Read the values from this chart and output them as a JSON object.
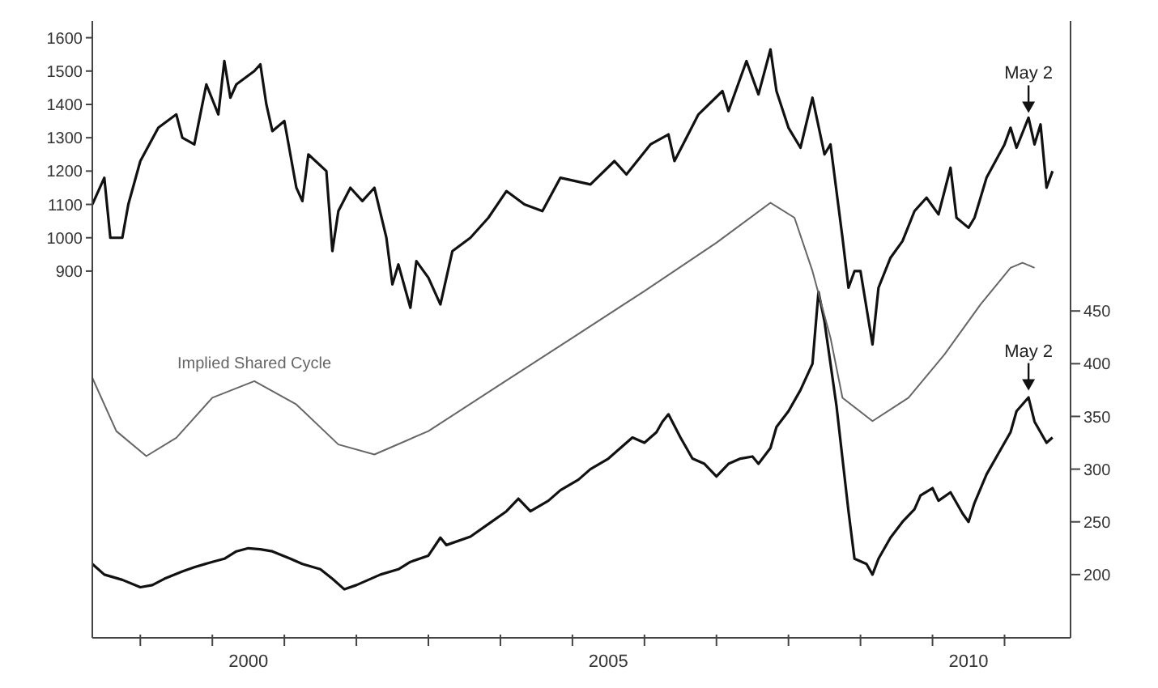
{
  "chart_data": {
    "type": "line",
    "marker": "none",
    "line_style": "solid",
    "xlim": [
      "1998-05",
      "2011-12"
    ],
    "xticks": [
      {
        "value": "1999-01",
        "label": null
      },
      {
        "value": "2000-01",
        "label": null
      },
      {
        "value": "2000-07",
        "label": "2000"
      },
      {
        "value": "2001-01",
        "label": null
      },
      {
        "value": "2002-01",
        "label": null
      },
      {
        "value": "2003-01",
        "label": null
      },
      {
        "value": "2004-01",
        "label": null
      },
      {
        "value": "2005-01",
        "label": null
      },
      {
        "value": "2005-07",
        "label": "2005"
      },
      {
        "value": "2006-01",
        "label": null
      },
      {
        "value": "2007-01",
        "label": null
      },
      {
        "value": "2008-01",
        "label": null
      },
      {
        "value": "2009-01",
        "label": null
      },
      {
        "value": "2010-01",
        "label": null
      },
      {
        "value": "2010-07",
        "label": "2010"
      },
      {
        "value": "2011-01",
        "label": null
      }
    ],
    "ylim": [
      -200,
      1650
    ],
    "yticks": [
      900,
      1000,
      1100,
      1200,
      1300,
      1400,
      1500,
      1600
    ],
    "y2lim": [
      140,
      725
    ],
    "y2ticks": [
      200,
      250,
      300,
      350,
      400,
      450
    ],
    "annotations": [
      {
        "text": "May 2",
        "x": "2011-05",
        "y": 1360
      },
      {
        "text": "May 2",
        "x": "2011-05",
        "y": 527
      }
    ],
    "series": [
      {
        "color": "#111111",
        "x": [
          "1998-05",
          "1998-07",
          "1998-08",
          "1998-10",
          "1998-11",
          "1999-01",
          "1999-04",
          "1999-07",
          "1999-08",
          "1999-10",
          "1999-12",
          "2000-02",
          "2000-03",
          "2000-04",
          "2000-05",
          "2000-08",
          "2000-09",
          "2000-10",
          "2000-11",
          "2001-01",
          "2001-03",
          "2001-04",
          "2001-05",
          "2001-08",
          "2001-09",
          "2001-10",
          "2001-12",
          "2002-02",
          "2002-04",
          "2002-06",
          "2002-07",
          "2002-08",
          "2002-10",
          "2002-11",
          "2003-01",
          "2003-03",
          "2003-05",
          "2003-08",
          "2003-11",
          "2004-02",
          "2004-05",
          "2004-08",
          "2004-11",
          "2005-04",
          "2005-08",
          "2005-10",
          "2006-02",
          "2006-05",
          "2006-06",
          "2006-10",
          "2007-02",
          "2007-03",
          "2007-06",
          "2007-08",
          "2007-10",
          "2007-11",
          "2008-01",
          "2008-03",
          "2008-05",
          "2008-07",
          "2008-08",
          "2008-10",
          "2008-11",
          "2008-12",
          "2009-01",
          "2009-03",
          "2009-04",
          "2009-06",
          "2009-08",
          "2009-10",
          "2009-12",
          "2010-02",
          "2010-04",
          "2010-05",
          "2010-07",
          "2010-08",
          "2010-10",
          "2011-01",
          "2011-02",
          "2011-03",
          "2011-05",
          "2011-06",
          "2011-07",
          "2011-08",
          "2011-09"
        ],
        "values": [
          1100,
          1180,
          1000,
          1000,
          1100,
          1230,
          1330,
          1370,
          1300,
          1280,
          1460,
          1370,
          1530,
          1420,
          1460,
          1500,
          1520,
          1400,
          1320,
          1350,
          1150,
          1110,
          1250,
          1200,
          960,
          1080,
          1150,
          1110,
          1150,
          1000,
          860,
          920,
          790,
          930,
          880,
          800,
          960,
          1000,
          1060,
          1140,
          1100,
          1080,
          1180,
          1160,
          1230,
          1190,
          1280,
          1310,
          1230,
          1370,
          1440,
          1380,
          1530,
          1430,
          1565,
          1440,
          1330,
          1270,
          1420,
          1250,
          1280,
          1000,
          850,
          900,
          900,
          680,
          850,
          940,
          990,
          1080,
          1120,
          1070,
          1210,
          1060,
          1030,
          1060,
          1180,
          1280,
          1330,
          1270,
          1360,
          1280,
          1340,
          1150,
          1200
        ]
      },
      {
        "color": "#111111",
        "axis": "y2",
        "x": [
          "1998-05",
          "1998-07",
          "1998-10",
          "1999-01",
          "1999-03",
          "1999-05",
          "1999-08",
          "1999-10",
          "2000-01",
          "2000-03",
          "2000-05",
          "2000-07",
          "2000-09",
          "2000-11",
          "2001-02",
          "2001-04",
          "2001-07",
          "2001-09",
          "2001-11",
          "2002-01",
          "2002-03",
          "2002-05",
          "2002-08",
          "2002-10",
          "2003-01",
          "2003-03",
          "2003-04",
          "2003-08",
          "2003-11",
          "2004-02",
          "2004-04",
          "2004-06",
          "2004-09",
          "2004-11",
          "2005-02",
          "2005-04",
          "2005-07",
          "2005-09",
          "2005-11",
          "2006-01",
          "2006-03",
          "2006-04",
          "2006-05",
          "2006-07",
          "2006-09",
          "2006-11",
          "2007-01",
          "2007-03",
          "2007-05",
          "2007-07",
          "2007-08",
          "2007-10",
          "2007-11",
          "2008-01",
          "2008-03",
          "2008-05",
          "2008-06",
          "2008-07",
          "2008-08",
          "2008-09",
          "2008-10",
          "2008-11",
          "2008-12",
          "2009-02",
          "2009-03",
          "2009-04",
          "2009-06",
          "2009-08",
          "2009-10",
          "2009-11",
          "2010-01",
          "2010-02",
          "2010-04",
          "2010-06",
          "2010-07",
          "2010-08",
          "2010-10",
          "2010-12",
          "2011-02",
          "2011-03",
          "2011-05",
          "2011-06",
          "2011-07",
          "2011-08",
          "2011-09"
        ],
        "values": [
          210,
          200,
          195,
          188,
          190,
          196,
          203,
          207,
          212,
          215,
          222,
          225,
          224,
          222,
          215,
          210,
          205,
          196,
          186,
          190,
          195,
          200,
          205,
          212,
          218,
          235,
          228,
          236,
          248,
          260,
          272,
          260,
          270,
          280,
          290,
          300,
          310,
          320,
          330,
          325,
          335,
          345,
          352,
          330,
          310,
          305,
          293,
          305,
          310,
          312,
          305,
          320,
          340,
          355,
          375,
          400,
          468,
          440,
          400,
          360,
          310,
          260,
          215,
          210,
          200,
          215,
          235,
          250,
          262,
          275,
          282,
          270,
          278,
          258,
          250,
          268,
          295,
          315,
          335,
          355,
          368,
          345,
          335,
          325,
          330
        ]
      },
      {
        "name": "Implied Shared Cycle",
        "color": "#666666",
        "x": [
          "1998-05",
          "1998-09",
          "1999-02",
          "1999-07",
          "2000-01",
          "2000-08",
          "2001-03",
          "2001-10",
          "2002-04",
          "2003-01",
          "2004-01",
          "2005-01",
          "2006-01",
          "2007-01",
          "2007-10",
          "2008-02",
          "2008-05",
          "2008-08",
          "2008-10",
          "2009-03",
          "2009-09",
          "2010-03",
          "2010-09",
          "2011-02",
          "2011-04",
          "2011-06"
        ],
        "values": [
          580,
          420,
          345,
          400,
          520,
          570,
          500,
          380,
          350,
          420,
          560,
          700,
          840,
          985,
          1105,
          1060,
          900,
          700,
          520,
          450,
          520,
          650,
          800,
          910,
          925,
          910
        ]
      }
    ]
  }
}
